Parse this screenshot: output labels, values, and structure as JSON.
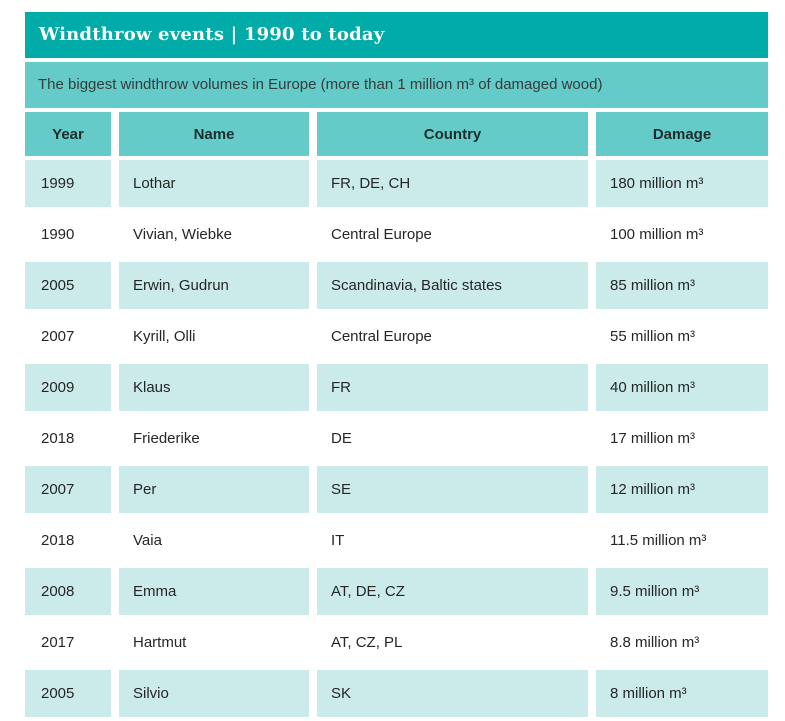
{
  "header": {
    "title": "Windthrow events | 1990 to today",
    "subtitle": "The biggest windthrow volumes in Europe (more than 1 million m³ of damaged wood)"
  },
  "colors": {
    "title_bar_bg": "#00aba8",
    "title_text": "#ffffff",
    "header_row_bg": "#64cbc8",
    "alt_row_bg": "#cbeaea",
    "row_bg": "#ffffff",
    "body_text": "#262626"
  },
  "chart_data": {
    "type": "table",
    "title": "Windthrow events | 1990 to today",
    "subtitle": "The biggest windthrow volumes in Europe (more than 1 million m³ of damaged wood)",
    "columns": [
      "Year",
      "Name",
      "Country",
      "Damage"
    ],
    "rows": [
      {
        "year": "1999",
        "name": "Lothar",
        "country": "FR, DE, CH",
        "damage": "180 million m³"
      },
      {
        "year": "1990",
        "name": "Vivian, Wiebke",
        "country": "Central Europe",
        "damage": "100 million m³"
      },
      {
        "year": "2005",
        "name": "Erwin, Gudrun",
        "country": "Scandinavia, Baltic states",
        "damage": "85 million m³"
      },
      {
        "year": "2007",
        "name": "Kyrill, Olli",
        "country": "Central Europe",
        "damage": "55 million m³"
      },
      {
        "year": "2009",
        "name": "Klaus",
        "country": "FR",
        "damage": "40 million m³"
      },
      {
        "year": "2018",
        "name": "Friederike",
        "country": "DE",
        "damage": "17 million m³"
      },
      {
        "year": "2007",
        "name": "Per",
        "country": "SE",
        "damage": "12 million m³"
      },
      {
        "year": "2018",
        "name": "Vaia",
        "country": "IT",
        "damage": "11.5 million m³"
      },
      {
        "year": "2008",
        "name": "Emma",
        "country": "AT, DE, CZ",
        "damage": "9.5 million m³"
      },
      {
        "year": "2017",
        "name": "Hartmut",
        "country": "AT, CZ, PL",
        "damage": "8.8 million m³"
      },
      {
        "year": "2005",
        "name": "Silvio",
        "country": "SK",
        "damage": "8 million m³"
      }
    ]
  }
}
